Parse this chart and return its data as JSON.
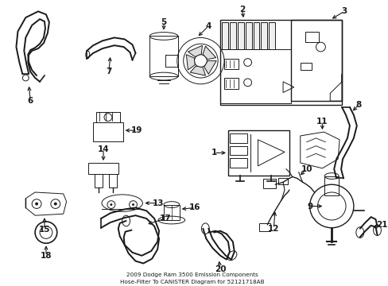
{
  "title": "2009 Dodge Ram 3500 Emission Components\nHose-Filter To CANISTER Diagram for 52121718AB",
  "bg_color": "#ffffff",
  "line_color": "#1a1a1a",
  "fig_width": 4.89,
  "fig_height": 3.6,
  "dpi": 100
}
